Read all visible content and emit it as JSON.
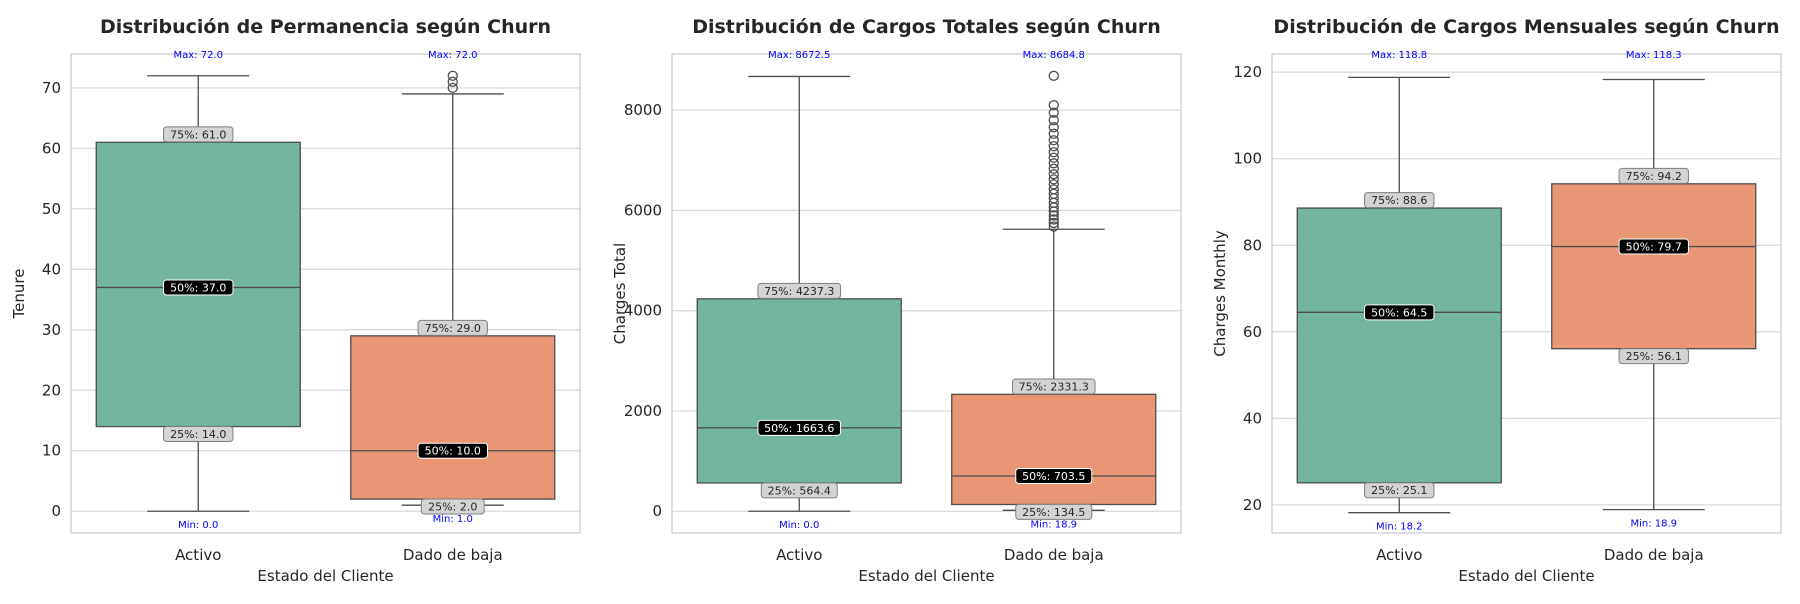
{
  "chart_data": [
    {
      "type": "box",
      "title": "Distribución de Permanencia según Churn",
      "xlabel": "Estado del Cliente",
      "ylabel": "Tenure",
      "ylim": [
        -3.6,
        75.6
      ],
      "yticks": [
        0,
        10,
        20,
        30,
        40,
        50,
        60,
        70
      ],
      "categories": [
        "Activo",
        "Dado de baja"
      ],
      "grid": true,
      "boxes": [
        {
          "category": "Activo",
          "color": "#73b69f",
          "min": 0.0,
          "q1": 14.0,
          "median": 37.0,
          "q3": 61.0,
          "max": 72.0,
          "whisker_low": 0.0,
          "whisker_high": 72.0,
          "outliers": [],
          "labels": {
            "max": "Max: 72.0",
            "q3": "75%: 61.0",
            "median": "50%: 37.0",
            "q1": "25%: 14.0",
            "min": "Min: 0.0"
          }
        },
        {
          "category": "Dado de baja",
          "color": "#e99674",
          "min": 1.0,
          "q1": 2.0,
          "median": 10.0,
          "q3": 29.0,
          "max": 72.0,
          "whisker_low": 1.0,
          "whisker_high": 69.0,
          "outliers": [
            70,
            71,
            72
          ],
          "labels": {
            "max": "Max: 72.0",
            "q3": "75%: 29.0",
            "median": "50%: 10.0",
            "q1": "25%: 2.0",
            "min": "Min: 1.0"
          }
        }
      ]
    },
    {
      "type": "box",
      "title": "Distribución de Cargos Totales según Churn",
      "xlabel": "Estado del Cliente",
      "ylabel": "Charges Total",
      "ylim": [
        -434,
        9120
      ],
      "yticks": [
        0,
        2000,
        4000,
        6000,
        8000
      ],
      "categories": [
        "Activo",
        "Dado de baja"
      ],
      "grid": true,
      "boxes": [
        {
          "category": "Activo",
          "color": "#73b69f",
          "min": 0.0,
          "q1": 564.4,
          "median": 1663.6,
          "q3": 4237.3,
          "max": 8672.5,
          "whisker_low": 0.0,
          "whisker_high": 8672.5,
          "outliers": [],
          "labels": {
            "max": "Max: 8672.5",
            "q3": "75%: 4237.3",
            "median": "50%: 1663.6",
            "q1": "25%: 564.4",
            "min": "Min: 0.0"
          }
        },
        {
          "category": "Dado de baja",
          "color": "#e99674",
          "min": 18.9,
          "q1": 134.5,
          "median": 703.5,
          "q3": 2331.3,
          "max": 8684.8,
          "whisker_low": 18.9,
          "whisker_high": 5625,
          "outliers": [
            5680,
            5750,
            5820,
            5900,
            5980,
            6060,
            6150,
            6240,
            6330,
            6420,
            6520,
            6620,
            6720,
            6830,
            6940,
            7050,
            7160,
            7280,
            7400,
            7530,
            7660,
            7800,
            7950,
            8100,
            8684.8
          ],
          "labels": {
            "max": "Max: 8684.8",
            "q3": "75%: 2331.3",
            "median": "50%: 703.5",
            "q1": "25%: 134.5",
            "min": "Min: 18.9"
          }
        }
      ]
    },
    {
      "type": "box",
      "title": "Distribución de Cargos Mensuales según Churn",
      "xlabel": "Estado del Cliente",
      "ylabel": "Charges Monthly",
      "ylim": [
        13.5,
        124.2
      ],
      "yticks": [
        20,
        40,
        60,
        80,
        100,
        120
      ],
      "categories": [
        "Activo",
        "Dado de baja"
      ],
      "grid": true,
      "boxes": [
        {
          "category": "Activo",
          "color": "#73b69f",
          "min": 18.2,
          "q1": 25.1,
          "median": 64.5,
          "q3": 88.6,
          "max": 118.8,
          "whisker_low": 18.2,
          "whisker_high": 118.8,
          "outliers": [],
          "labels": {
            "max": "Max: 118.8",
            "q3": "75%: 88.6",
            "median": "50%: 64.5",
            "q1": "25%: 25.1",
            "min": "Min: 18.2"
          }
        },
        {
          "category": "Dado de baja",
          "color": "#e99674",
          "min": 18.9,
          "q1": 56.1,
          "median": 79.7,
          "q3": 94.2,
          "max": 118.3,
          "whisker_low": 18.9,
          "whisker_high": 118.3,
          "outliers": [],
          "labels": {
            "max": "Max: 118.3",
            "q3": "75%: 94.2",
            "median": "50%: 79.7",
            "q1": "25%: 56.1",
            "min": "Min: 18.9"
          }
        }
      ]
    }
  ]
}
